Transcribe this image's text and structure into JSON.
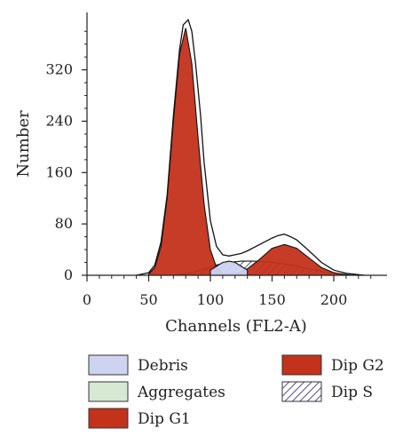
{
  "chart_data": {
    "type": "area",
    "xlabel": "Channels (FL2-A)",
    "ylabel": "Number",
    "xlim": [
      0,
      240
    ],
    "ylim": [
      0,
      400
    ],
    "xticks": [
      0,
      50,
      100,
      150,
      200
    ],
    "yticks": [
      0,
      80,
      160,
      240,
      320
    ],
    "legend_position": "bottom",
    "series": [
      {
        "name": "Debris",
        "color": "#cdd3f0",
        "style": "fill",
        "x": [
          100,
          105,
          110,
          115,
          120,
          125,
          130
        ],
        "y": [
          8,
          14,
          20,
          22,
          20,
          14,
          8
        ]
      },
      {
        "name": "Aggregates",
        "color": "#d7e8d3",
        "style": "fill",
        "x": [
          100,
          110,
          120,
          130,
          140
        ],
        "y": [
          0,
          2,
          3,
          2,
          0
        ]
      },
      {
        "name": "Dip G1",
        "color": "#c3321b",
        "style": "fill",
        "x": [
          50,
          55,
          60,
          65,
          70,
          75,
          80,
          85,
          90,
          95,
          100,
          105,
          110
        ],
        "y": [
          2,
          12,
          45,
          120,
          240,
          345,
          385,
          330,
          215,
          110,
          40,
          12,
          3
        ]
      },
      {
        "name": "Dip G2",
        "color": "#c3321b",
        "style": "fill",
        "x": [
          120,
          130,
          140,
          150,
          160,
          170,
          180,
          190,
          200,
          210
        ],
        "y": [
          2,
          10,
          25,
          42,
          48,
          42,
          27,
          12,
          4,
          1
        ]
      },
      {
        "name": "Dip S",
        "color": "#2a2a7a",
        "style": "hatch",
        "x": [
          75,
          85,
          95,
          105,
          115,
          125,
          135,
          145,
          155,
          165,
          175,
          185,
          195,
          205,
          215
        ],
        "y": [
          1,
          4,
          10,
          16,
          20,
          22,
          22,
          21,
          19,
          16,
          12,
          8,
          4,
          2,
          0
        ]
      }
    ],
    "total_envelope": {
      "x": [
        40,
        50,
        55,
        60,
        65,
        70,
        75,
        78,
        82,
        85,
        88,
        92,
        95,
        100,
        105,
        110,
        115,
        120,
        125,
        130,
        140,
        150,
        155,
        160,
        165,
        170,
        180,
        190,
        200,
        210,
        220,
        225
      ],
      "y": [
        0,
        4,
        16,
        52,
        125,
        248,
        352,
        390,
        398,
        380,
        330,
        250,
        175,
        85,
        45,
        32,
        30,
        32,
        34,
        38,
        48,
        58,
        62,
        64,
        60,
        55,
        38,
        20,
        8,
        3,
        1,
        0
      ]
    }
  }
}
